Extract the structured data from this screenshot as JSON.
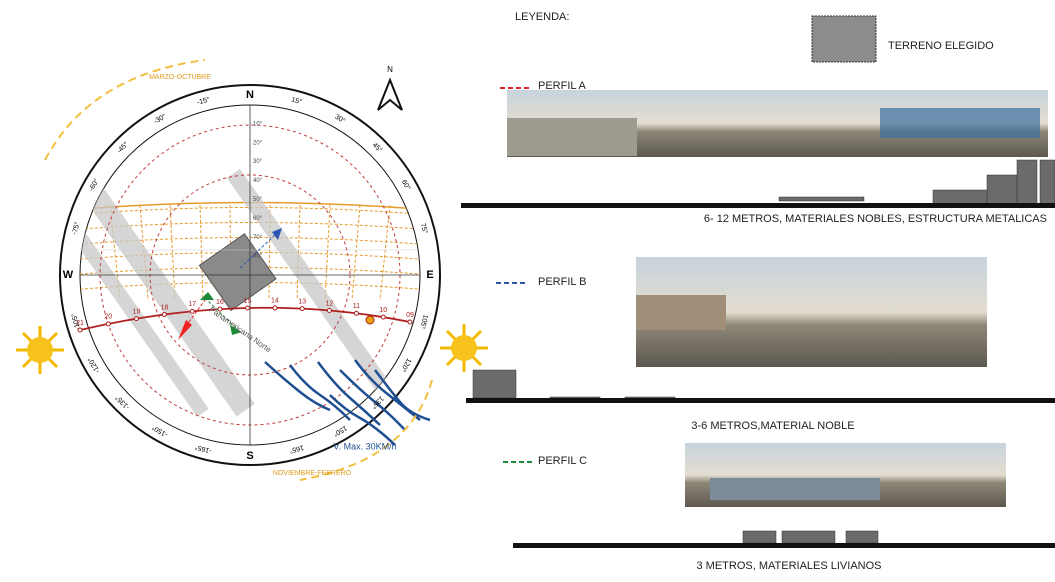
{
  "legend": {
    "title": "LEYENDA:",
    "site": "TERRENO ELEGIDO"
  },
  "sun_chart": {
    "cardinals": {
      "north": "N",
      "south": "S",
      "east": "E",
      "west": "W"
    },
    "north_arrow": "N",
    "azimuth_labels": [
      "15°",
      "30°",
      "45°",
      "60°",
      "75°",
      "105°",
      "120°",
      "135°",
      "150°",
      "165°",
      "-165°",
      "-150°",
      "-135°",
      "-120°",
      "-105°",
      "-75°",
      "-60°",
      "-45°",
      "-30°",
      "-15°"
    ],
    "altitude_labels": [
      "10°",
      "20°",
      "30°",
      "40°",
      "50°",
      "60°",
      "70°",
      "80°"
    ],
    "hour_labels": [
      "21",
      "20",
      "19",
      "18",
      "17",
      "16",
      "15",
      "14",
      "13",
      "12",
      "11",
      "10",
      "09"
    ],
    "season_top": "MARZO-OCTUBRE",
    "season_bottom": "NOVIEMBRE-FEBRERO",
    "wind": "V. Max. 30KM/h",
    "road": "Panamericana Norte"
  },
  "profiles": [
    {
      "label": "PERFIL A",
      "caption": "6- 12 METROS, MATERIALES NOBLES, ESTRUCTURA METALICAS"
    },
    {
      "label": "PERFIL B",
      "caption": "3-6 METROS,MATERIAL NOBLE"
    },
    {
      "label": "PERFIL C",
      "caption": "3 METROS, MATERIALES LIVIANOS"
    }
  ]
}
